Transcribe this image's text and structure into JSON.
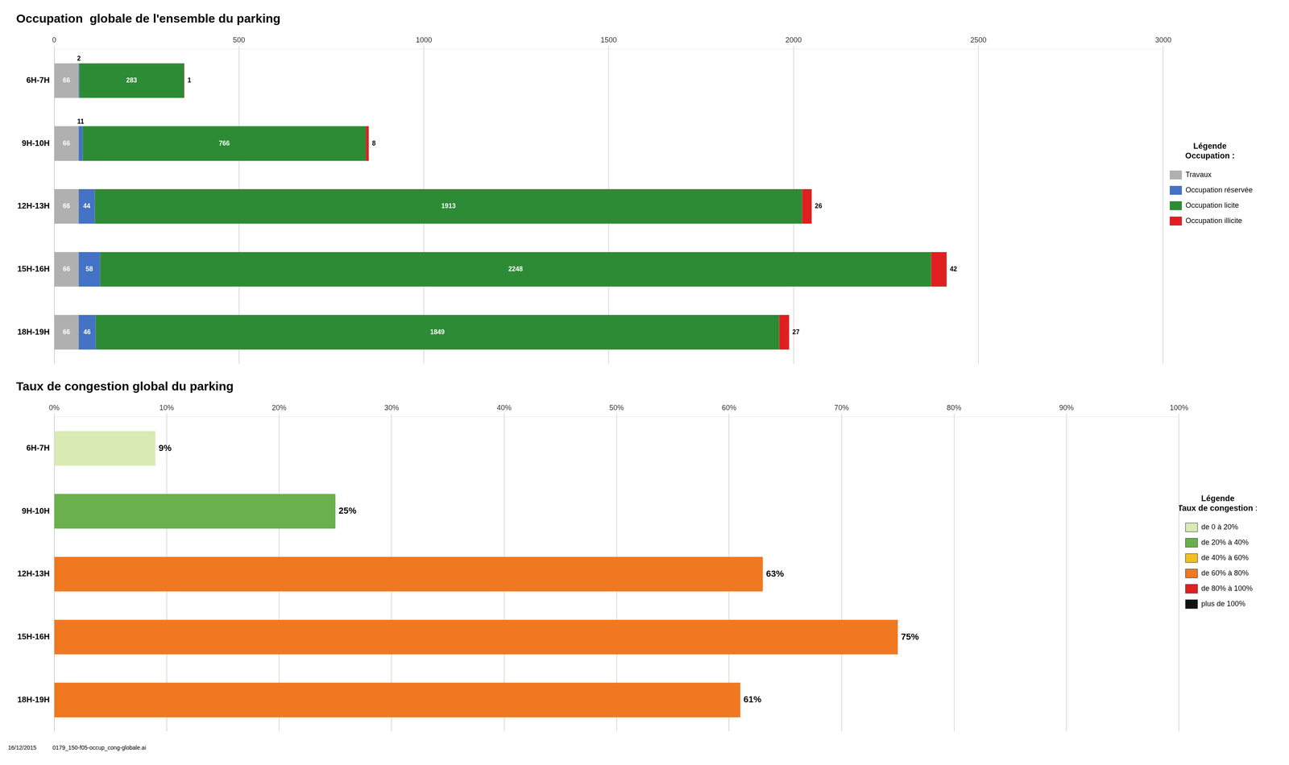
{
  "chart_data": [
    {
      "type": "bar",
      "title": "Occupation  globale de l'ensemble du parking",
      "orientation": "horizontal",
      "stacked": true,
      "data_labels": true,
      "grid": true,
      "legend": "right",
      "legend_title": "Légende",
      "legend_subtitle": "Occupation :",
      "categories": [
        "6H-7H",
        "9H-10H",
        "12H-13H",
        "15H-16H",
        "18H-19H"
      ],
      "series": [
        {
          "name": "Travaux",
          "color": "#b0b0b0",
          "values": [
            66,
            66,
            66,
            66,
            66
          ]
        },
        {
          "name": "Occupation réservée",
          "color": "#4472c4",
          "values": [
            2,
            11,
            44,
            58,
            46
          ]
        },
        {
          "name": "Occupation licite",
          "color": "#2e8b35",
          "values": [
            283,
            766,
            1913,
            2248,
            1849
          ]
        },
        {
          "name": "Occupation illicite",
          "color": "#e02020",
          "values": [
            1,
            8,
            26,
            42,
            27
          ]
        }
      ],
      "xlim": [
        0,
        3000
      ],
      "xticks": [
        0,
        500,
        1000,
        1500,
        2000,
        2500,
        3000
      ]
    },
    {
      "type": "bar",
      "title": "Taux de congestion global du parking",
      "orientation": "horizontal",
      "data_labels": true,
      "grid": true,
      "legend": "right",
      "legend_title": "Légende",
      "legend_subtitle": "Taux de congestion :",
      "legend_items": [
        {
          "label": "de 0 à 20%",
          "color": "#d9eab5"
        },
        {
          "label": "de 20% à 40%",
          "color": "#6ab04c"
        },
        {
          "label": "de 40% à 60%",
          "color": "#f0c020"
        },
        {
          "label": "de 60% à 80%",
          "color": "#f07820"
        },
        {
          "label": "de 80% à 100%",
          "color": "#e02020"
        },
        {
          "label": "plus de 100%",
          "color": "#111111"
        }
      ],
      "categories": [
        "6H-7H",
        "9H-10H",
        "12H-13H",
        "15H-16H",
        "18H-19H"
      ],
      "values": [
        0.09,
        0.25,
        0.63,
        0.75,
        0.61
      ],
      "value_labels": [
        "9%",
        "25%",
        "63%",
        "75%",
        "61%"
      ],
      "colors": [
        "#d9eab5",
        "#6ab04c",
        "#f07820",
        "#f07820",
        "#f07820"
      ],
      "xlim": [
        0,
        1.0
      ],
      "xticks": [
        {
          "value": 0.0,
          "label": "0%"
        },
        {
          "value": 0.1,
          "label": "10%"
        },
        {
          "value": 0.2,
          "label": "20%"
        },
        {
          "value": 0.3,
          "label": "30%"
        },
        {
          "value": 0.4,
          "label": "40%"
        },
        {
          "value": 0.5,
          "label": "50%"
        },
        {
          "value": 0.6,
          "label": "60%"
        },
        {
          "value": 0.7,
          "label": "70%"
        },
        {
          "value": 0.8,
          "label": "80%"
        },
        {
          "value": 0.9,
          "label": "90%"
        },
        {
          "value": 1.0,
          "label": "100%"
        }
      ],
      "annotations": [
        "16/12/2015",
        "0179_150-f05-occup_cong-globale.ai"
      ]
    }
  ]
}
